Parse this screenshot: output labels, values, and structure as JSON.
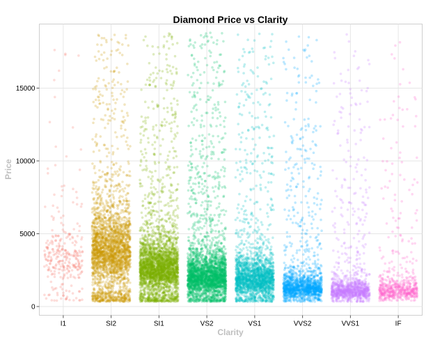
{
  "chart_data": {
    "type": "scatter",
    "title": "Diamond Price vs Clarity",
    "xlabel": "Clarity",
    "ylabel": "Price",
    "categories": [
      "I1",
      "SI2",
      "SI1",
      "VS2",
      "VS1",
      "VVS2",
      "VVS1",
      "IF"
    ],
    "ylim": [
      -600,
      19400
    ],
    "yticks": [
      0,
      5000,
      10000,
      15000
    ],
    "ytick_labels": [
      "0",
      "5000",
      "10000",
      "15000"
    ],
    "grid": true,
    "jitter": true,
    "point_alpha": 0.25,
    "series": [
      {
        "category": "I1",
        "color": "#F8766D",
        "count": 300,
        "min": 400,
        "max": 18500,
        "median": 3400
      },
      {
        "category": "SI2",
        "color": "#CD9600",
        "count": 2600,
        "min": 330,
        "max": 18800,
        "median": 4100
      },
      {
        "category": "SI1",
        "color": "#7CAE00",
        "count": 3000,
        "min": 330,
        "max": 18800,
        "median": 2800
      },
      {
        "category": "VS2",
        "color": "#00BE67",
        "count": 2900,
        "min": 330,
        "max": 18800,
        "median": 2100
      },
      {
        "category": "VS1",
        "color": "#00BFC4",
        "count": 2100,
        "min": 330,
        "max": 18800,
        "median": 2000
      },
      {
        "category": "VVS2",
        "color": "#00A9FF",
        "count": 1500,
        "min": 330,
        "max": 18800,
        "median": 1300
      },
      {
        "category": "VVS1",
        "color": "#C77CFF",
        "count": 1100,
        "min": 330,
        "max": 18800,
        "median": 1100
      },
      {
        "category": "IF",
        "color": "#FF61CC",
        "count": 600,
        "min": 370,
        "max": 18800,
        "median": 1100
      }
    ]
  }
}
